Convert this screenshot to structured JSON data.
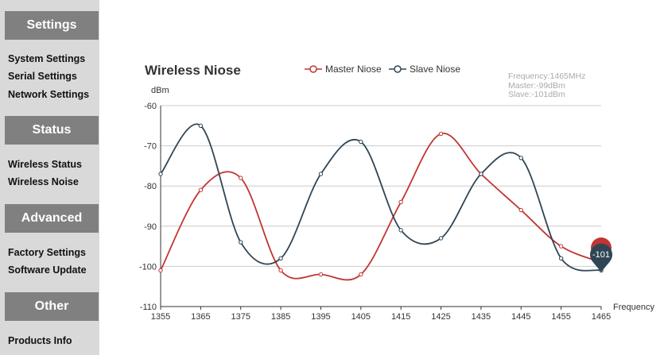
{
  "sidebar": {
    "sections": [
      {
        "title": "Settings",
        "items": [
          "System Settings",
          "Serial Settings",
          "Network Settings"
        ]
      },
      {
        "title": "Status",
        "items": [
          "Wireless Status",
          "Wireless Noise"
        ]
      },
      {
        "title": "Advanced",
        "items": [
          "Factory Settings",
          "Software Update"
        ]
      },
      {
        "title": "Other",
        "items": [
          "Products Info"
        ]
      }
    ]
  },
  "chart_data": {
    "type": "line",
    "title": "Wireless Niose",
    "ylabel": "dBm",
    "xlabel": "Frequency",
    "ylim": [
      -110,
      -60
    ],
    "xlim": [
      1355,
      1465
    ],
    "x_ticks": [
      1355,
      1365,
      1375,
      1385,
      1395,
      1405,
      1415,
      1425,
      1435,
      1445,
      1455,
      1465
    ],
    "y_ticks": [
      -60,
      -70,
      -80,
      -90,
      -100,
      -110
    ],
    "grid": true,
    "legend_position": "top",
    "series": [
      {
        "name": "Master Niose",
        "color": "#c23531",
        "x": [
          1355,
          1365,
          1375,
          1385,
          1395,
          1405,
          1415,
          1425,
          1435,
          1445,
          1455,
          1465
        ],
        "values": [
          -101,
          -81,
          -78,
          -101,
          -102,
          -102,
          -84,
          -67,
          -77,
          -86,
          -95,
          -99
        ]
      },
      {
        "name": "Slave Niose",
        "color": "#2f4554",
        "x": [
          1355,
          1365,
          1375,
          1385,
          1395,
          1405,
          1415,
          1425,
          1435,
          1445,
          1455,
          1465
        ],
        "values": [
          -77,
          -65,
          -94,
          -98,
          -77,
          -69,
          -91,
          -93,
          -77,
          -73,
          -98,
          -101
        ]
      }
    ],
    "tooltip": {
      "lines": [
        "Frequency:1465MHz",
        "Master:-99dBm",
        "Slave:-101dBm"
      ]
    },
    "marker_label": "-101"
  }
}
